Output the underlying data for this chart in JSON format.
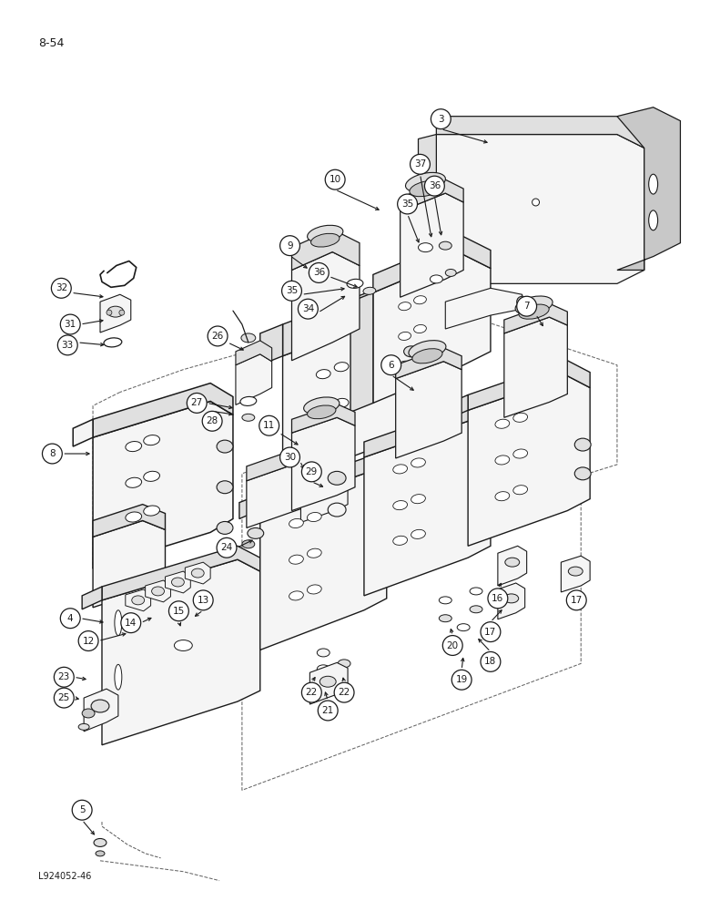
{
  "page_label": "8-54",
  "image_ref": "L924052-46",
  "background_color": "#ffffff",
  "line_color": "#1a1a1a",
  "text_color": "#1a1a1a",
  "figsize": [
    7.8,
    10.0
  ],
  "dpi": 100,
  "face_light": "#f5f5f5",
  "face_mid": "#e0e0e0",
  "face_dark": "#c8c8c8",
  "face_white": "#ffffff"
}
